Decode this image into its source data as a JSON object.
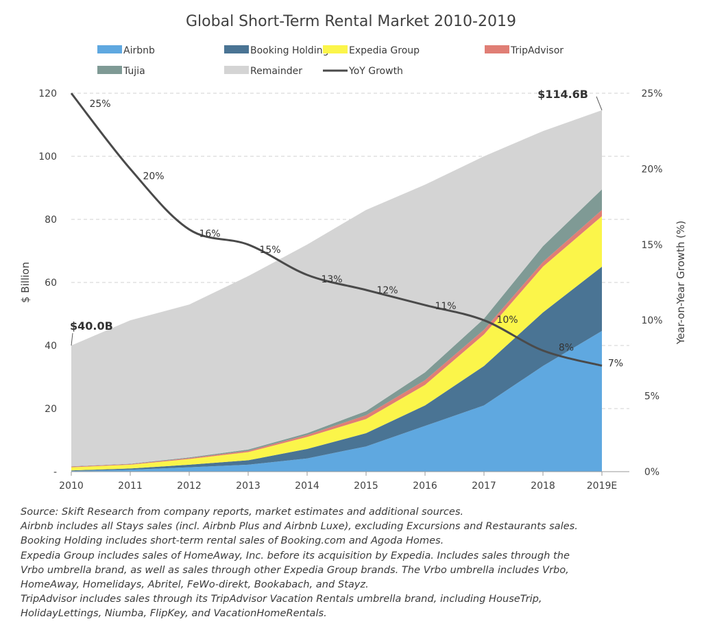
{
  "chart_data": {
    "type": "area",
    "title": "Global Short-Term Rental Market 2010-2019",
    "categories": [
      "2010",
      "2011",
      "2012",
      "2013",
      "2014",
      "2015",
      "2016",
      "2017",
      "2018",
      "2019E"
    ],
    "ylabel": "$ Billion",
    "y2label": "Year-on-Year Growth (%)",
    "ylim": [
      0,
      120
    ],
    "yticks": [
      "-",
      "20",
      "40",
      "60",
      "80",
      "100",
      "120"
    ],
    "y2lim": [
      0,
      25
    ],
    "y2ticks": [
      "0%",
      "5%",
      "10%",
      "15%",
      "20%",
      "25%"
    ],
    "grid": true,
    "legend_position": "top",
    "stacked": true,
    "series": [
      {
        "name": "Airbnb",
        "color": "#5fa8e0",
        "values": [
          0.2,
          0.6,
          1.4,
          2.2,
          4.2,
          8.0,
          14.5,
          21.0,
          33.5,
          44.6
        ]
      },
      {
        "name": "Booking Holdings",
        "color": "#4a7494",
        "values": [
          0.2,
          0.4,
          0.8,
          1.4,
          3.0,
          4.2,
          6.5,
          12.5,
          17.0,
          20.4
        ]
      },
      {
        "name": "Expedia Group",
        "color": "#fbf54a",
        "values": [
          1.0,
          1.2,
          1.8,
          2.6,
          3.8,
          4.5,
          6.5,
          10.0,
          14.5,
          16.0
        ]
      },
      {
        "name": "TripAdvisor",
        "color": "#e07e75",
        "values": [
          0.2,
          0.2,
          0.3,
          0.4,
          0.6,
          1.2,
          1.5,
          1.5,
          1.5,
          2.0
        ]
      },
      {
        "name": "Tujia",
        "color": "#7f9a95",
        "values": [
          0.1,
          0.1,
          0.2,
          0.4,
          0.6,
          1.3,
          2.5,
          3.5,
          5.0,
          6.5
        ]
      },
      {
        "name": "Remainder",
        "color": "#d4d4d4",
        "values": [
          38.3,
          45.5,
          48.5,
          55.0,
          59.8,
          63.8,
          59.5,
          51.5,
          36.5,
          25.1
        ]
      }
    ],
    "line_series": {
      "name": "YoY Growth",
      "color": "#4a4a4a",
      "axis": "right",
      "values": [
        25,
        20,
        16,
        15,
        13,
        12,
        11,
        10,
        8,
        7
      ],
      "labels": [
        "25%",
        "20%",
        "16%",
        "15%",
        "13%",
        "12%",
        "11%",
        "10%",
        "8%",
        "7%"
      ]
    },
    "annotations": [
      {
        "text": "$40.0B",
        "category": "2010"
      },
      {
        "text": "$114.6B",
        "category": "2019E"
      }
    ]
  },
  "notes": [
    "Source: Skift Research from company reports, market estimates and additional sources.",
    "Airbnb includes all Stays sales (incl. Airbnb Plus and Airbnb Luxe), excluding Excursions and Restaurants sales.",
    "Booking Holding includes short-term rental sales of Booking.com and Agoda Homes.",
    "Expedia Group includes sales of HomeAway, Inc. before its acquisition by Expedia. Includes sales through the",
    "Vrbo umbrella brand, as well as sales through other Expedia Group brands. The Vrbo umbrella includes Vrbo,",
    "HomeAway, Homelidays, Abritel, FeWo-direkt, Bookabach, and Stayz.",
    "TripAdvisor includes sales through its TripAdvisor Vacation Rentals umbrella brand, including HouseTrip,",
    "HolidayLettings, Niumba, FlipKey, and VacationHomeRentals."
  ]
}
